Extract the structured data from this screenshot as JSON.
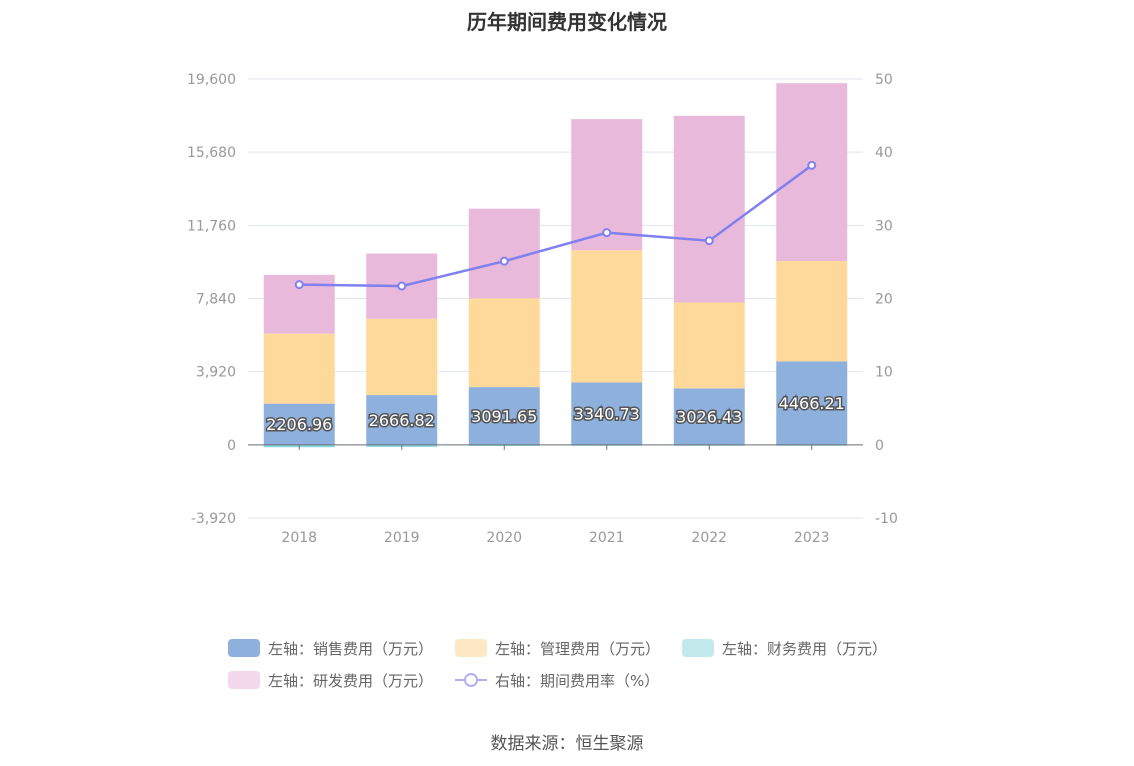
{
  "title": "历年期间费用变化情况",
  "source": "数据来源：恒生聚源",
  "colors": {
    "sales": "#8eb0dc",
    "admin": "#ffd99a",
    "finance": "#8cd9dd",
    "rd": "#e8b9da",
    "rate": "#8080f0",
    "legend_admin": "#fde8c5",
    "legend_finance": "#c2eaec",
    "legend_rd": "#f3d7ea",
    "legend_rate": "#b0b0f0"
  },
  "legend": [
    {
      "key": "sales",
      "label": "左轴：销售费用（万元）"
    },
    {
      "key": "admin",
      "label": "左轴：管理费用（万元）"
    },
    {
      "key": "finance",
      "label": "左轴：财务费用（万元）"
    },
    {
      "key": "rd",
      "label": "左轴：研发费用（万元）"
    },
    {
      "key": "rate",
      "label": "右轴：期间费用率（%）"
    }
  ],
  "chart_data": {
    "type": "bar",
    "categories": [
      "2018",
      "2019",
      "2020",
      "2021",
      "2022",
      "2023"
    ],
    "left_axis": {
      "ticks": [
        "19,600",
        "15,680",
        "11,760",
        "7,840",
        "3,920",
        "0",
        "-3,920"
      ],
      "ylim": [
        -3920,
        19600
      ]
    },
    "right_axis": {
      "ticks": [
        "50",
        "40",
        "30",
        "20",
        "10",
        "0",
        "-10"
      ],
      "ylim": [
        -10,
        50
      ]
    },
    "series": [
      {
        "name": "左轴：销售费用（万元）",
        "key": "sales",
        "values": [
          2206.96,
          2666.82,
          3091.65,
          3340.73,
          3026.43,
          4466.21
        ],
        "labels": [
          "2206.96",
          "2666.82",
          "3091.65",
          "3340.73",
          "3026.43",
          "4466.21"
        ]
      },
      {
        "name": "左轴：管理费用（万元）",
        "key": "admin",
        "values": [
          3750,
          4090,
          4760,
          7080,
          4600,
          5380
        ]
      },
      {
        "name": "左轴：财务费用（万元）",
        "key": "finance",
        "values": [
          -130,
          -110,
          -60,
          -50,
          -40,
          -20
        ]
      },
      {
        "name": "左轴：研发费用（万元）",
        "key": "rd",
        "values": [
          3150,
          3490,
          4800,
          7030,
          10000,
          9530
        ]
      },
      {
        "name": "右轴：期间费用率（%）",
        "key": "rate",
        "axis": "right",
        "type": "line",
        "values": [
          21.9,
          21.7,
          25.1,
          29.0,
          27.9,
          38.2
        ]
      }
    ]
  }
}
